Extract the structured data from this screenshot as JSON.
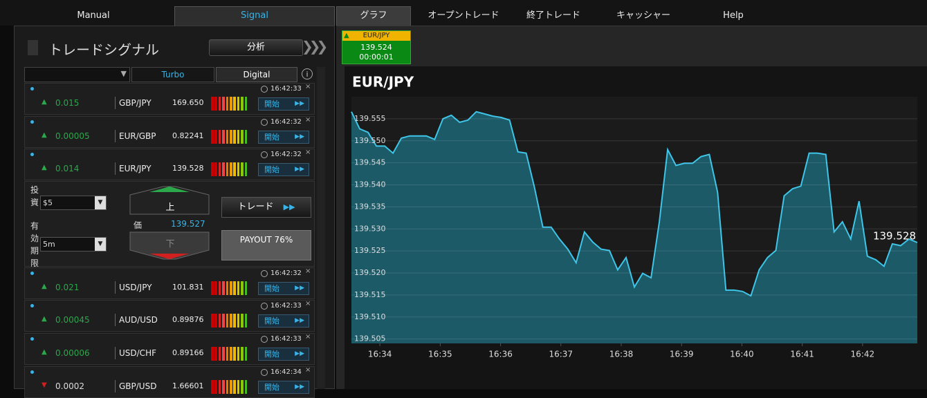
{
  "nav": {
    "tabs": [
      "Manual",
      "Signal",
      "グラフ",
      "オープントレード",
      "終了トレード",
      "キャッシャー",
      "Help"
    ]
  },
  "signals": {
    "title": "トレードシグナル",
    "analysis_button": "分析",
    "turbo": "Turbo",
    "digital": "Digital",
    "start_label": "開始",
    "rows": [
      {
        "time": "16:42:33",
        "direction": "up",
        "change": "0.015",
        "pair": "GBP/JPY",
        "price": "169.650"
      },
      {
        "time": "16:42:32",
        "direction": "up",
        "change": "0.00005",
        "pair": "EUR/GBP",
        "price": "0.82241"
      },
      {
        "time": "16:42:32",
        "direction": "up",
        "change": "0.014",
        "pair": "EUR/JPY",
        "price": "139.528"
      },
      {
        "time": "16:42:32",
        "direction": "up",
        "change": "0.021",
        "pair": "USD/JPY",
        "price": "101.831"
      },
      {
        "time": "16:42:33",
        "direction": "up",
        "change": "0.00045",
        "pair": "AUD/USD",
        "price": "0.89876"
      },
      {
        "time": "16:42:33",
        "direction": "up",
        "change": "0.00006",
        "pair": "USD/CHF",
        "price": "0.89166"
      },
      {
        "time": "16:42:34",
        "direction": "down",
        "change": "0.0002",
        "pair": "GBP/USD",
        "price": "1.66601"
      }
    ],
    "trade_panel": {
      "investment_label": "投資",
      "investment": "$5",
      "expiry_label": "有効期限",
      "expiry": "5m",
      "up_button": "上",
      "price_label": "価",
      "price": "139.527",
      "down_button": "下",
      "trade_button": "トレード",
      "payout": "PAYOUT 76%"
    }
  },
  "chart_tab": {
    "pair": "EUR/JPY",
    "price": "139.524",
    "timer": "00:00:01"
  },
  "chart_data": {
    "type": "area",
    "title": "EUR/JPY",
    "color": "#3ec5e8",
    "fill": "#1c5a68",
    "grid": true,
    "values": [
      139.5566,
      139.5527,
      139.5519,
      139.5488,
      139.5488,
      139.5472,
      139.5506,
      139.5511,
      139.5511,
      139.5511,
      139.5503,
      139.555,
      139.5558,
      139.5542,
      139.5547,
      139.5566,
      139.5561,
      139.5556,
      139.5553,
      139.5547,
      139.5475,
      139.5472,
      139.5394,
      139.5304,
      139.5304,
      139.5277,
      139.5254,
      139.5223,
      139.5293,
      139.527,
      139.5254,
      139.5251,
      139.5207,
      139.5235,
      139.5168,
      139.5199,
      139.5189,
      139.5316,
      139.548,
      139.5444,
      139.5449,
      139.5449,
      139.5464,
      139.5469,
      139.5383,
      139.5161,
      139.5161,
      139.5158,
      139.5148,
      139.5207,
      139.5235,
      139.5251,
      139.5375,
      139.5391,
      139.5397,
      139.5472,
      139.5472,
      139.5469,
      139.5293,
      139.5316,
      139.5277,
      139.5363,
      139.5238,
      139.523,
      139.5215,
      139.5266,
      139.5262,
      139.5277,
      139.5269
    ],
    "xlim": [
      0,
      68
    ],
    "xticks": [
      {
        "value": 3.42,
        "label": "16:34"
      },
      {
        "value": 10.67,
        "label": "16:35"
      },
      {
        "value": 17.92,
        "label": "16:36"
      },
      {
        "value": 25.17,
        "label": "16:37"
      },
      {
        "value": 32.42,
        "label": "16:38"
      },
      {
        "value": 39.67,
        "label": "16:39"
      },
      {
        "value": 46.92,
        "label": "16:40"
      },
      {
        "value": 54.17,
        "label": "16:41"
      },
      {
        "value": 61.42,
        "label": "16:42"
      }
    ],
    "ylim": [
      139.504,
      139.56
    ],
    "yticks": [
      139.505,
      {
        "value": 139.51,
        "label": "139.510"
      },
      139.515,
      {
        "value": 139.52,
        "label": "139.520"
      },
      139.525,
      {
        "value": 139.53,
        "label": "139.530"
      },
      139.535,
      {
        "value": 139.54,
        "label": "139.540"
      },
      139.545,
      {
        "value": 139.55,
        "label": "139.550"
      },
      139.555
    ],
    "current_price": 139.528
  }
}
